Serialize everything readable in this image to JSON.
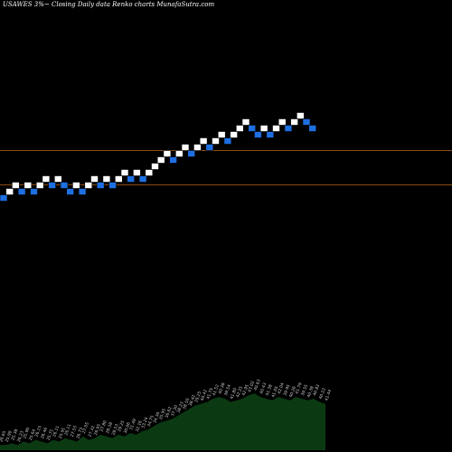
{
  "header": {
    "title": "USAWES 3%~  Closing Daily data  Renko  charts MunafaSutra.com"
  },
  "colors": {
    "background": "#000000",
    "up_brick": "#ffffff",
    "down_brick": "#1e6fe0",
    "reference_line": "#8a4b12",
    "volume_area": "#0b3a12",
    "volume_label": "#cccccc"
  },
  "chart_data": [
    {
      "type": "renko",
      "title": "USAWES 3%~  Closing Daily data  Renko  charts MunafaSutra.com",
      "reference_levels": [
        46.5,
        42.5
      ],
      "ylim": [
        12,
        52
      ],
      "bricks": [
        {
          "dir": "down",
          "level": 42
        },
        {
          "dir": "up",
          "level": 43
        },
        {
          "dir": "up",
          "level": 44
        },
        {
          "dir": "down",
          "level": 43
        },
        {
          "dir": "up",
          "level": 44
        },
        {
          "dir": "down",
          "level": 43
        },
        {
          "dir": "up",
          "level": 44
        },
        {
          "dir": "up",
          "level": 45
        },
        {
          "dir": "down",
          "level": 44
        },
        {
          "dir": "up",
          "level": 45
        },
        {
          "dir": "down",
          "level": 44
        },
        {
          "dir": "down",
          "level": 43
        },
        {
          "dir": "up",
          "level": 44
        },
        {
          "dir": "down",
          "level": 43
        },
        {
          "dir": "up",
          "level": 44
        },
        {
          "dir": "up",
          "level": 45
        },
        {
          "dir": "down",
          "level": 44
        },
        {
          "dir": "up",
          "level": 45
        },
        {
          "dir": "down",
          "level": 44
        },
        {
          "dir": "up",
          "level": 45
        },
        {
          "dir": "up",
          "level": 46
        },
        {
          "dir": "down",
          "level": 45
        },
        {
          "dir": "up",
          "level": 46
        },
        {
          "dir": "down",
          "level": 45
        },
        {
          "dir": "up",
          "level": 46
        },
        {
          "dir": "up",
          "level": 47
        },
        {
          "dir": "up",
          "level": 48
        },
        {
          "dir": "up",
          "level": 49
        },
        {
          "dir": "down",
          "level": 48
        },
        {
          "dir": "up",
          "level": 49
        },
        {
          "dir": "up",
          "level": 50
        },
        {
          "dir": "down",
          "level": 49
        },
        {
          "dir": "up",
          "level": 50
        },
        {
          "dir": "up",
          "level": 51
        },
        {
          "dir": "down",
          "level": 50
        },
        {
          "dir": "up",
          "level": 51
        },
        {
          "dir": "up",
          "level": 52
        },
        {
          "dir": "down",
          "level": 51
        },
        {
          "dir": "up",
          "level": 52
        },
        {
          "dir": "up",
          "level": 53
        },
        {
          "dir": "up",
          "level": 54
        },
        {
          "dir": "down",
          "level": 53
        },
        {
          "dir": "down",
          "level": 52
        },
        {
          "dir": "up",
          "level": 53
        },
        {
          "dir": "down",
          "level": 52
        },
        {
          "dir": "up",
          "level": 53
        },
        {
          "dir": "up",
          "level": 54
        },
        {
          "dir": "down",
          "level": 53
        },
        {
          "dir": "up",
          "level": 54
        },
        {
          "dir": "up",
          "level": 55
        },
        {
          "dir": "down",
          "level": 54
        },
        {
          "dir": "down",
          "level": 53
        }
      ]
    },
    {
      "type": "area",
      "series": [
        {
          "values": [
            3,
            3,
            4,
            3,
            5,
            4,
            6,
            5,
            4,
            6,
            5,
            7,
            6,
            5,
            8,
            6,
            7,
            9,
            8,
            7,
            9,
            8,
            10,
            9,
            11,
            12,
            14,
            16,
            17,
            18,
            20,
            22,
            24,
            26,
            27,
            28,
            30,
            31,
            30,
            28,
            29,
            30,
            32,
            33,
            31,
            30,
            29,
            31,
            30,
            29,
            31,
            30,
            29,
            30,
            28,
            27
          ],
          "point_labels": [
            "26.65",
            "25.90",
            "25.38",
            "26.23",
            "25.90",
            "25.64",
            "26.15",
            "26.46",
            "25.71",
            "26.11",
            "25.91",
            "26.11",
            "27.55",
            "26.73",
            "27.05",
            "27.32",
            "26.95",
            "27.80",
            "28.38",
            "28.53",
            "29.25",
            "30.06",
            "31.49",
            "32.16",
            "33.24",
            "34.75",
            "34.30",
            "35.95",
            "36.62",
            "37.30",
            "38.23",
            "38.50",
            "38.42",
            "39.25",
            "40.42",
            "41.75",
            "41.52",
            "40.38",
            "39.54",
            "41.80",
            "42.25",
            "42.95",
            "43.02",
            "40.63",
            "40.43",
            "41.38",
            "41.05",
            "42.04",
            "39.95",
            "40.26",
            "41.79",
            "39.55",
            "40.38",
            "40.83",
            "40.22",
            "41.44"
          ]
        }
      ]
    }
  ]
}
